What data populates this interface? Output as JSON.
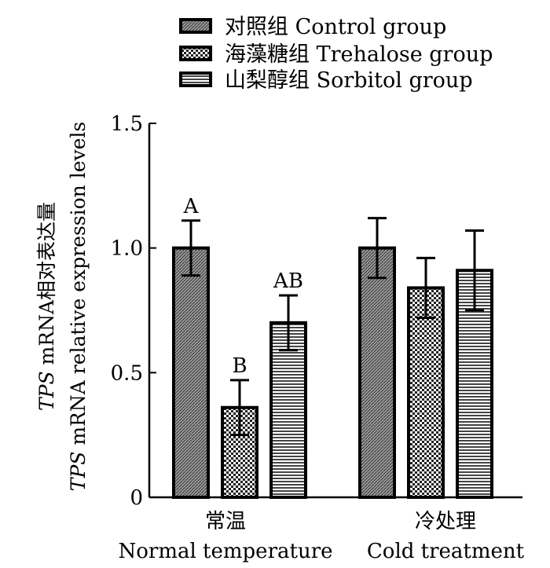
{
  "chart_data": {
    "type": "bar",
    "categories": [
      {
        "zh": "常温",
        "en": "Normal temperature"
      },
      {
        "zh": "冷处理",
        "en": "Cold treatment"
      }
    ],
    "series": [
      {
        "name": "对照组 Control group",
        "pattern": "diagonal-hatch",
        "values": [
          1.0,
          1.0
        ],
        "errors": [
          0.11,
          0.12
        ],
        "labels": [
          "A",
          ""
        ]
      },
      {
        "name": "海藻糖组 Trehalose group",
        "pattern": "checker",
        "values": [
          0.36,
          0.84
        ],
        "errors": [
          0.11,
          0.12
        ],
        "labels": [
          "B",
          ""
        ]
      },
      {
        "name": "山梨醇组 Sorbitol group",
        "pattern": "horizontal-lines",
        "values": [
          0.7,
          0.91
        ],
        "errors": [
          0.11,
          0.16
        ],
        "labels": [
          "AB",
          ""
        ]
      }
    ],
    "ylabel_line1": {
      "italic": "TPS",
      "rest": " mRNA相对表达量"
    },
    "ylabel_line2": {
      "italic": "TPS",
      "rest": " mRNA relative expression levels"
    },
    "ylim": [
      0,
      1.5
    ],
    "yticks": [
      0,
      0.5,
      1.0,
      1.5
    ],
    "ytick_labels": [
      "0",
      "0.5",
      "1.0",
      "1.5"
    ],
    "grid": false,
    "legend_position": "top"
  }
}
